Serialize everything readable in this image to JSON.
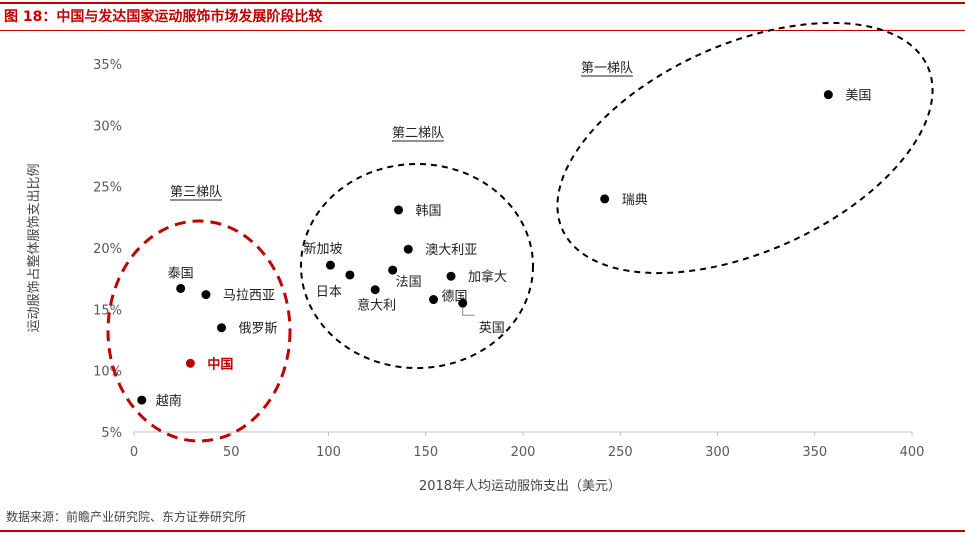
{
  "header": {
    "title": "图 18：中国与发达国家运动服饰市场发展阶段比较"
  },
  "footer": {
    "source": "数据来源：前瞻产业研究院、东方证券研究所"
  },
  "colors": {
    "brand": "#c00000",
    "point": "#000000",
    "highlight": "#c00000"
  },
  "chart_data": {
    "type": "scatter",
    "xlabel": "2018年人均运动服饰支出（美元）",
    "ylabel": "运动服饰占整体服饰支出比例",
    "xlim": [
      0,
      400
    ],
    "ylim": [
      0.05,
      0.35
    ],
    "x_ticks": [
      0,
      50,
      100,
      150,
      200,
      250,
      300,
      350,
      400
    ],
    "x_tick_labels": [
      "0",
      "50",
      "100",
      "150",
      "200",
      "250",
      "300",
      "350",
      "400"
    ],
    "y_ticks": [
      0.05,
      0.1,
      0.15,
      0.2,
      0.25,
      0.3,
      0.35
    ],
    "y_tick_labels": [
      "5%",
      "10%",
      "15%",
      "20%",
      "25%",
      "30%",
      "35%"
    ],
    "grid": false,
    "points": [
      {
        "label": "越南",
        "x": 4,
        "y": 0.076
      },
      {
        "label": "中国",
        "x": 29,
        "y": 0.106,
        "highlight": true
      },
      {
        "label": "泰国",
        "x": 24,
        "y": 0.167
      },
      {
        "label": "马拉西亚",
        "x": 37,
        "y": 0.162
      },
      {
        "label": "俄罗斯",
        "x": 45,
        "y": 0.135
      },
      {
        "label": "新加坡",
        "x": 101,
        "y": 0.186
      },
      {
        "label": "日本",
        "x": 111,
        "y": 0.178
      },
      {
        "label": "意大利",
        "x": 124,
        "y": 0.166
      },
      {
        "label": "法国",
        "x": 133,
        "y": 0.182
      },
      {
        "label": "韩国",
        "x": 136,
        "y": 0.231
      },
      {
        "label": "澳大利亚",
        "x": 141,
        "y": 0.199
      },
      {
        "label": "德国",
        "x": 154,
        "y": 0.158
      },
      {
        "label": "加拿大",
        "x": 163,
        "y": 0.177
      },
      {
        "label": "英国",
        "x": 169,
        "y": 0.155
      },
      {
        "label": "瑞典",
        "x": 242,
        "y": 0.24
      },
      {
        "label": "美国",
        "x": 357,
        "y": 0.325
      }
    ],
    "groups": [
      {
        "label": "第一梯队",
        "color": "#000000"
      },
      {
        "label": "第二梯队",
        "color": "#000000"
      },
      {
        "label": "第三梯队",
        "color": "#c00000"
      }
    ]
  }
}
